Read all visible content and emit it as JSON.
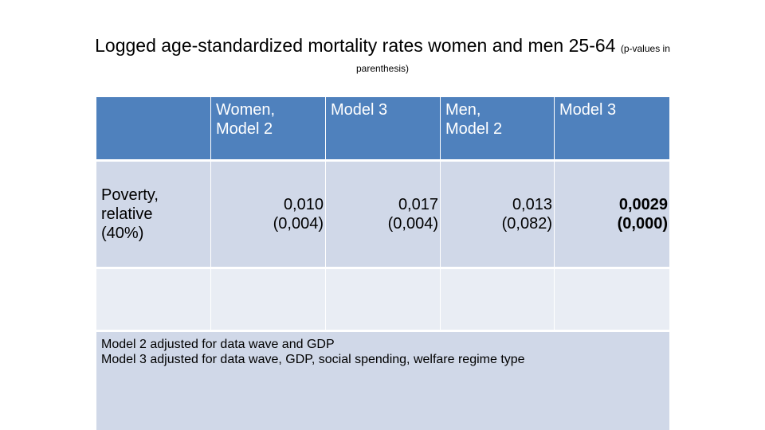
{
  "title": {
    "main": "Logged age-standardized mortality rates women and men 25-64",
    "small": "(p-values in",
    "continuation": "parenthesis)"
  },
  "table": {
    "headers": [
      "",
      "Women, Model 2",
      "Model 3",
      "Men, Model 2",
      "Model 3"
    ],
    "header_lines": {
      "women_model2": [
        "Women,",
        "Model 2"
      ],
      "women_model3": [
        "Model 3"
      ],
      "men_model2": [
        "Men,",
        "Model 2"
      ],
      "men_model3": [
        "Model 3"
      ]
    },
    "rows": [
      {
        "label_lines": [
          "Poverty,",
          "relative",
          "(40%)"
        ],
        "cells": [
          {
            "value": "0,010",
            "p": "(0,004)",
            "bold": false
          },
          {
            "value": "0,017",
            "p": "(0,004)",
            "bold": false
          },
          {
            "value": "0,013",
            "p": "(0,082)",
            "bold": false
          },
          {
            "value": "0,0029",
            "p": "(0,000)",
            "bold": true
          }
        ]
      }
    ],
    "notes": [
      "Model 2 adjusted  for data wave and GDP",
      "Model 3 adjusted for data wave, GDP, social spending, welfare regime type"
    ]
  }
}
